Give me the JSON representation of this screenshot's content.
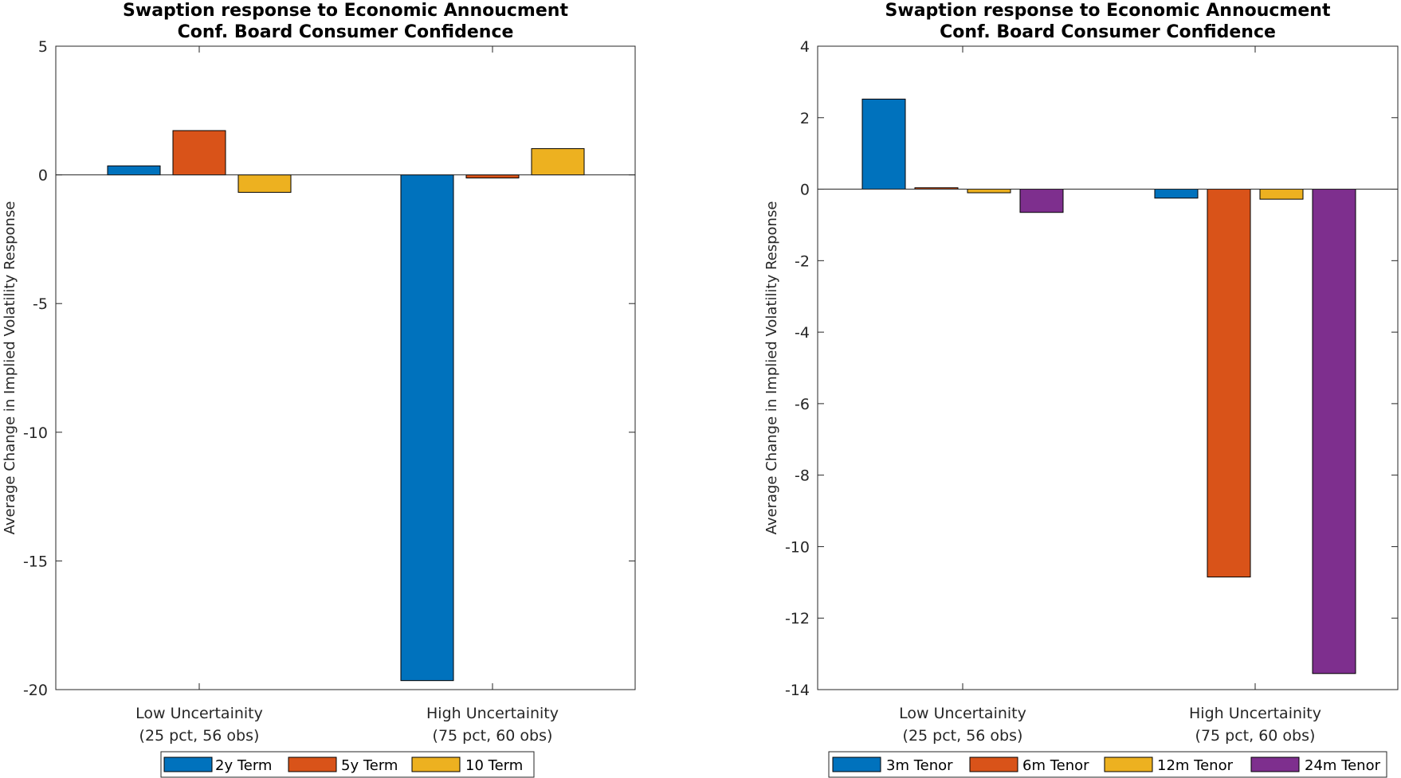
{
  "chart_data": [
    {
      "type": "bar",
      "title": [
        "Swaption response to Economic Annoucment",
        "Conf. Board Consumer Confidence"
      ],
      "ylabel": "Average Change in Implied Volatility Response",
      "ylim": [
        -20,
        5
      ],
      "yticks": [
        5,
        0,
        -5,
        -10,
        -15,
        -20
      ],
      "categories": [
        [
          "Low Uncertainity",
          "(25 pct, 56 obs)"
        ],
        [
          "High Uncertainity",
          "(75 pct, 60 obs)"
        ]
      ],
      "legend_position": "bottom-center",
      "series": [
        {
          "name": "2y Term",
          "color": "#0072BD",
          "values": [
            0.35,
            -19.65
          ]
        },
        {
          "name": "5y Term",
          "color": "#D95319",
          "values": [
            1.72,
            -0.12
          ]
        },
        {
          "name": "10 Term",
          "color": "#EDB120",
          "values": [
            -0.68,
            1.02
          ]
        }
      ]
    },
    {
      "type": "bar",
      "title": [
        "Swaption response to Economic Annoucment",
        "Conf. Board Consumer Confidence"
      ],
      "ylabel": "Average Change in Implied Volatility Response",
      "ylim": [
        -14,
        4
      ],
      "yticks": [
        4,
        2,
        0,
        -2,
        -4,
        -6,
        -8,
        -10,
        -12,
        -14
      ],
      "categories": [
        [
          "Low Uncertainity",
          "(25 pct, 56 obs)"
        ],
        [
          "High Uncertainity",
          "(75 pct, 60 obs)"
        ]
      ],
      "legend_position": "bottom-center",
      "series": [
        {
          "name": "3m Tenor",
          "color": "#0072BD",
          "values": [
            2.52,
            -0.25
          ]
        },
        {
          "name": "6m Tenor",
          "color": "#D95319",
          "values": [
            0.04,
            -10.85
          ]
        },
        {
          "name": "12m Tenor",
          "color": "#EDB120",
          "values": [
            -0.1,
            -0.28
          ]
        },
        {
          "name": "24m Tenor",
          "color": "#7E2F8E",
          "values": [
            -0.65,
            -13.55
          ]
        }
      ]
    }
  ]
}
